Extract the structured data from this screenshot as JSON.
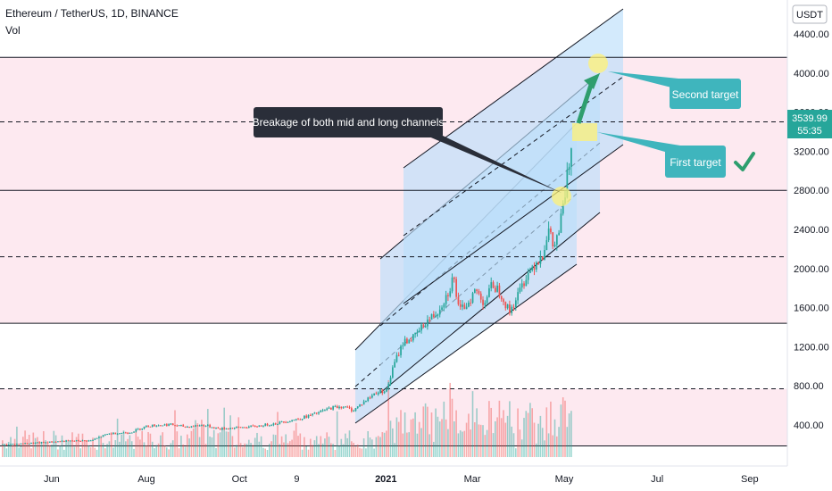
{
  "header": {
    "title": "Ethereum / TetherUS, 1D, BINANCE",
    "indicator": "Vol",
    "currency_badge": "USDT"
  },
  "price_tag": {
    "price": "3539.99",
    "countdown": "55:35",
    "color": "#26a69a"
  },
  "annotations": {
    "breakage": "Breakage of both mid and long channels",
    "first_target": "First target",
    "second_target": "Second target",
    "checkmark_icon": "check-icon"
  },
  "colors": {
    "up": "#26a69a",
    "down": "#ef5350",
    "channel_fill": "#bbdefb",
    "zone_fill": "#fce4ec",
    "callout_dark": "#2a2e39",
    "callout_teal": "#3fb5bd",
    "highlight": "#fff176",
    "arrow": "#2e9e6e"
  },
  "chart_data": {
    "type": "candlestick",
    "title": "Ethereum / TetherUS, 1D, BINANCE",
    "ylim": [
      160,
      4750
    ],
    "y_ticks": [
      "4400.00",
      "4000.00",
      "3600.00",
      "3200.00",
      "2800.00",
      "2400.00",
      "2000.00",
      "1600.00",
      "1200.00",
      "800.00",
      "400.00"
    ],
    "x_ticks": [
      "Jun",
      "Aug",
      "Oct",
      "9",
      "2021",
      "Mar",
      "May",
      "Jul",
      "Sep"
    ],
    "x_tick_positions": [
      0.08,
      0.25,
      0.417,
      0.52,
      0.68,
      0.835,
      1.0,
      1.167,
      1.333
    ],
    "x_range": [
      0.0,
      1.42
    ],
    "price_path": [
      [
        0.0,
        200
      ],
      [
        0.05,
        215
      ],
      [
        0.1,
        235
      ],
      [
        0.15,
        240
      ],
      [
        0.18,
        310
      ],
      [
        0.22,
        325
      ],
      [
        0.25,
        390
      ],
      [
        0.29,
        405
      ],
      [
        0.32,
        380
      ],
      [
        0.35,
        400
      ],
      [
        0.38,
        360
      ],
      [
        0.42,
        375
      ],
      [
        0.45,
        390
      ],
      [
        0.48,
        415
      ],
      [
        0.52,
        460
      ],
      [
        0.55,
        510
      ],
      [
        0.58,
        575
      ],
      [
        0.6,
        590
      ],
      [
        0.62,
        550
      ],
      [
        0.64,
        640
      ],
      [
        0.66,
        730
      ],
      [
        0.68,
        760
      ],
      [
        0.695,
        1050
      ],
      [
        0.71,
        1250
      ],
      [
        0.73,
        1300
      ],
      [
        0.75,
        1450
      ],
      [
        0.77,
        1550
      ],
      [
        0.79,
        1750
      ],
      [
        0.8,
        1920
      ],
      [
        0.81,
        1550
      ],
      [
        0.825,
        1650
      ],
      [
        0.84,
        1780
      ],
      [
        0.855,
        1650
      ],
      [
        0.87,
        1840
      ],
      [
        0.885,
        1750
      ],
      [
        0.9,
        1550
      ],
      [
        0.915,
        1720
      ],
      [
        0.93,
        1920
      ],
      [
        0.945,
        2050
      ],
      [
        0.96,
        2150
      ],
      [
        0.97,
        2400
      ],
      [
        0.98,
        2200
      ],
      [
        0.99,
        2400
      ],
      [
        1.0,
        2750
      ],
      [
        1.01,
        3200
      ],
      [
        1.02,
        3540
      ]
    ],
    "horizontal_levels": [
      {
        "price": 4160,
        "style": "solid"
      },
      {
        "price": 3500,
        "style": "dashed"
      },
      {
        "price": 2800,
        "style": "solid"
      },
      {
        "price": 2120,
        "style": "dashed"
      },
      {
        "price": 1440,
        "style": "solid"
      },
      {
        "price": 770,
        "style": "dashed"
      },
      {
        "price": 185,
        "style": "solid"
      }
    ],
    "current_price": 3539.99,
    "targets": [
      {
        "name": "First target",
        "price": 3420
      },
      {
        "name": "Second target",
        "price": 4160
      }
    ],
    "breakout_point": {
      "x": 1.0,
      "price": 2780
    }
  }
}
